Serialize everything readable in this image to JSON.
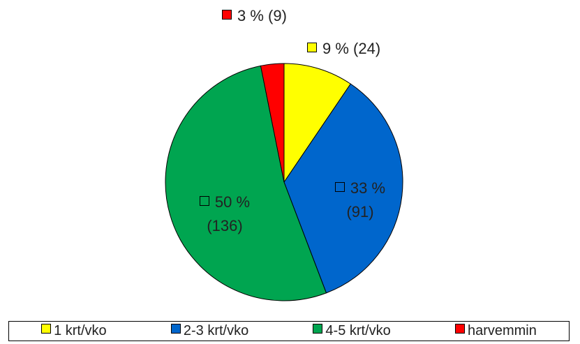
{
  "chart_data": {
    "type": "pie",
    "categories": [
      "1 krt/vko",
      "2-3 krt/vko",
      "4-5 krt/vko",
      "harvemmin"
    ],
    "values": [
      9,
      33,
      50,
      3
    ],
    "value_labels": [
      "9 % (24)",
      "33 % (91)",
      "50 % (136)",
      "3 % (9)"
    ],
    "colors": [
      "#ffff00",
      "#0066cc",
      "#00a550",
      "#ff0000"
    ],
    "legend": "bottom"
  }
}
